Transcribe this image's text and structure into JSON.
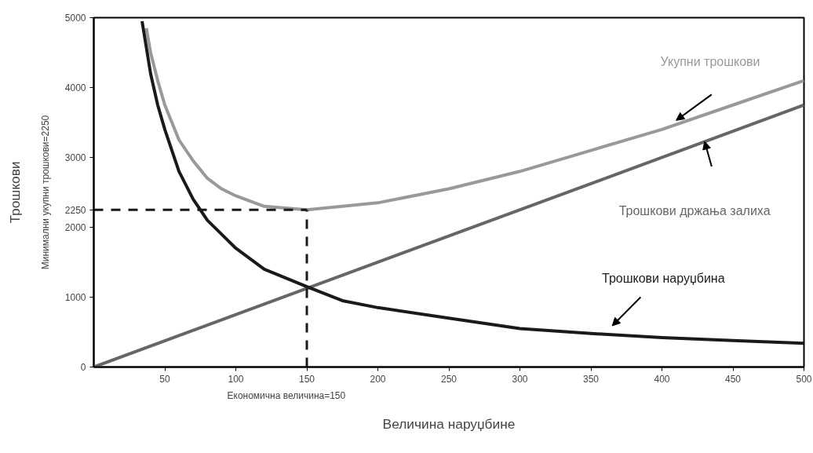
{
  "chart_data": {
    "type": "line",
    "xlabel": "Величина наруџбине",
    "ylabel": "Трошкови",
    "xlim": [
      0,
      500
    ],
    "ylim": [
      0,
      5000
    ],
    "xticks": [
      50,
      100,
      150,
      200,
      250,
      300,
      350,
      400,
      450,
      500
    ],
    "yticks": [
      0,
      1000,
      2000,
      2250,
      3000,
      4000,
      5000
    ],
    "grid": false,
    "marker": "none",
    "line_style": "solid",
    "series": [
      {
        "name": "Укупни трошкови",
        "color": "#999999",
        "x": [
          37,
          40,
          45,
          50,
          60,
          70,
          80,
          90,
          100,
          120,
          150,
          175,
          200,
          250,
          300,
          350,
          400,
          450,
          500
        ],
        "values": [
          4850,
          4500,
          4100,
          3750,
          3250,
          2950,
          2700,
          2550,
          2450,
          2300,
          2250,
          2300,
          2350,
          2550,
          2800,
          3100,
          3400,
          3750,
          4100
        ]
      },
      {
        "name": "Трошкови држања залиха",
        "color": "#666666",
        "x": [
          0,
          500
        ],
        "values": [
          0,
          3750
        ]
      },
      {
        "name": "Трошкови наруџбина",
        "color": "#1a1a1a",
        "x": [
          34,
          40,
          45,
          50,
          60,
          70,
          80,
          90,
          100,
          120,
          150,
          175,
          200,
          250,
          300,
          350,
          400,
          450,
          500
        ],
        "values": [
          4950,
          4200,
          3750,
          3400,
          2800,
          2400,
          2100,
          1900,
          1700,
          1400,
          1150,
          950,
          850,
          700,
          550,
          480,
          420,
          380,
          340
        ]
      }
    ],
    "ref_lines": [
      {
        "axis": "y",
        "value": 2250,
        "color": "#1a1a1a",
        "line_style": "dashed"
      },
      {
        "axis": "x",
        "value": 150,
        "color": "#1a1a1a",
        "line_style": "dashed"
      }
    ],
    "annotations": [
      "Минимални укупни трошкови=2250",
      "Економична величина=150"
    ]
  }
}
